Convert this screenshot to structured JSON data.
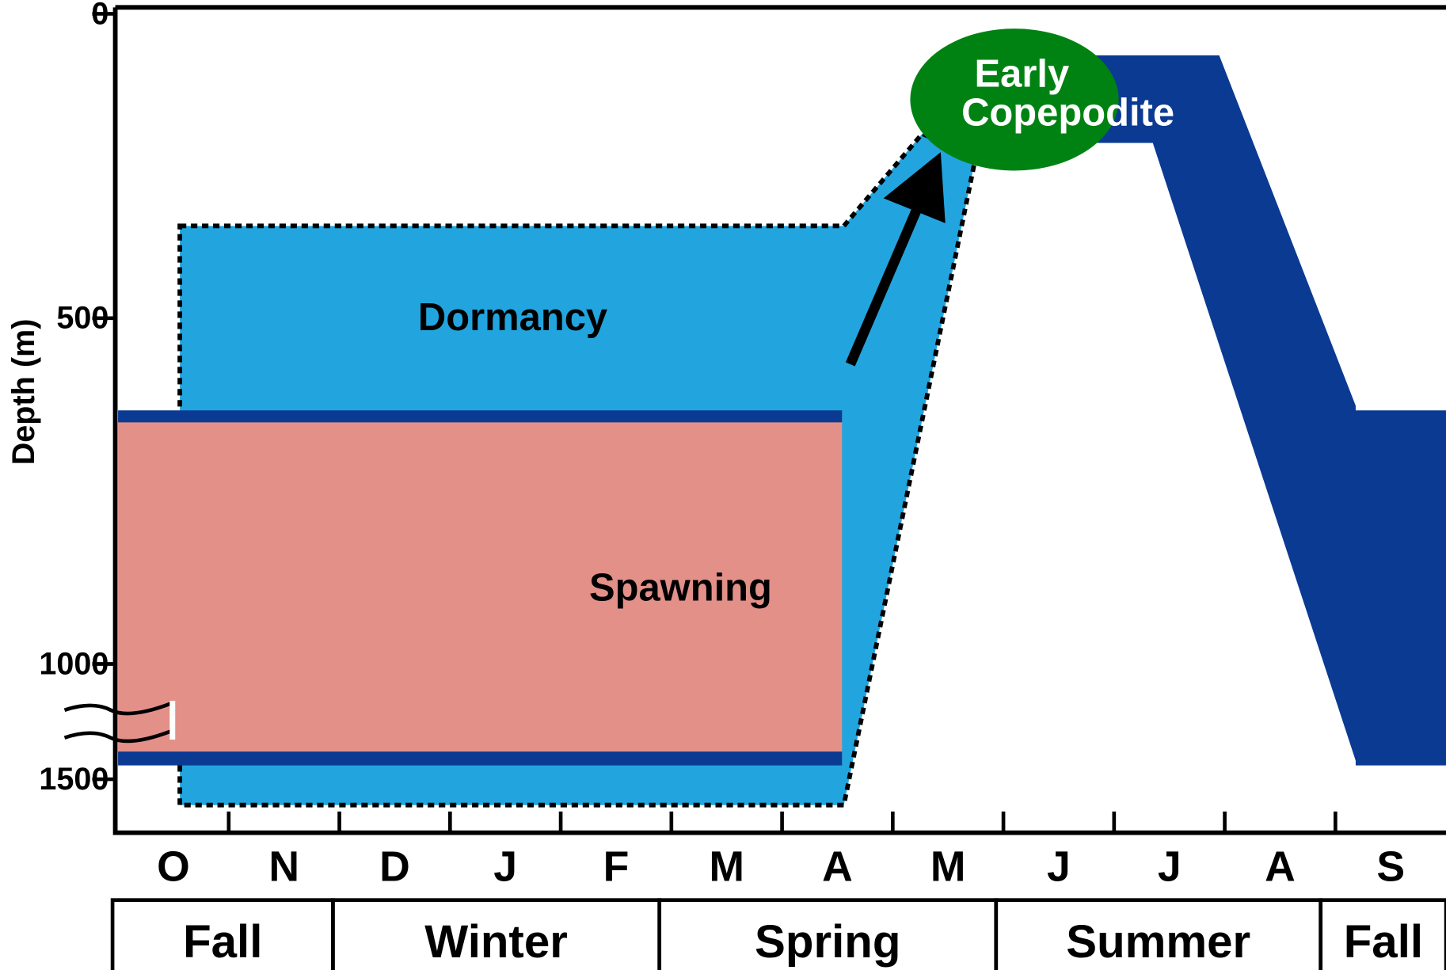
{
  "axis": {
    "y_label": "Depth (m)",
    "yticks": [
      0,
      500,
      1000,
      1500
    ]
  },
  "months": [
    "O",
    "N",
    "D",
    "J",
    "F",
    "M",
    "A",
    "M",
    "J",
    "J",
    "A",
    "S"
  ],
  "seasons": [
    "Fall",
    "Winter",
    "Spring",
    "Summer",
    "Fall"
  ],
  "labels": {
    "dormancy": "Dormancy",
    "spawning": "Spawning",
    "early_copepodite": [
      "Early",
      "Copepodite"
    ]
  }
}
